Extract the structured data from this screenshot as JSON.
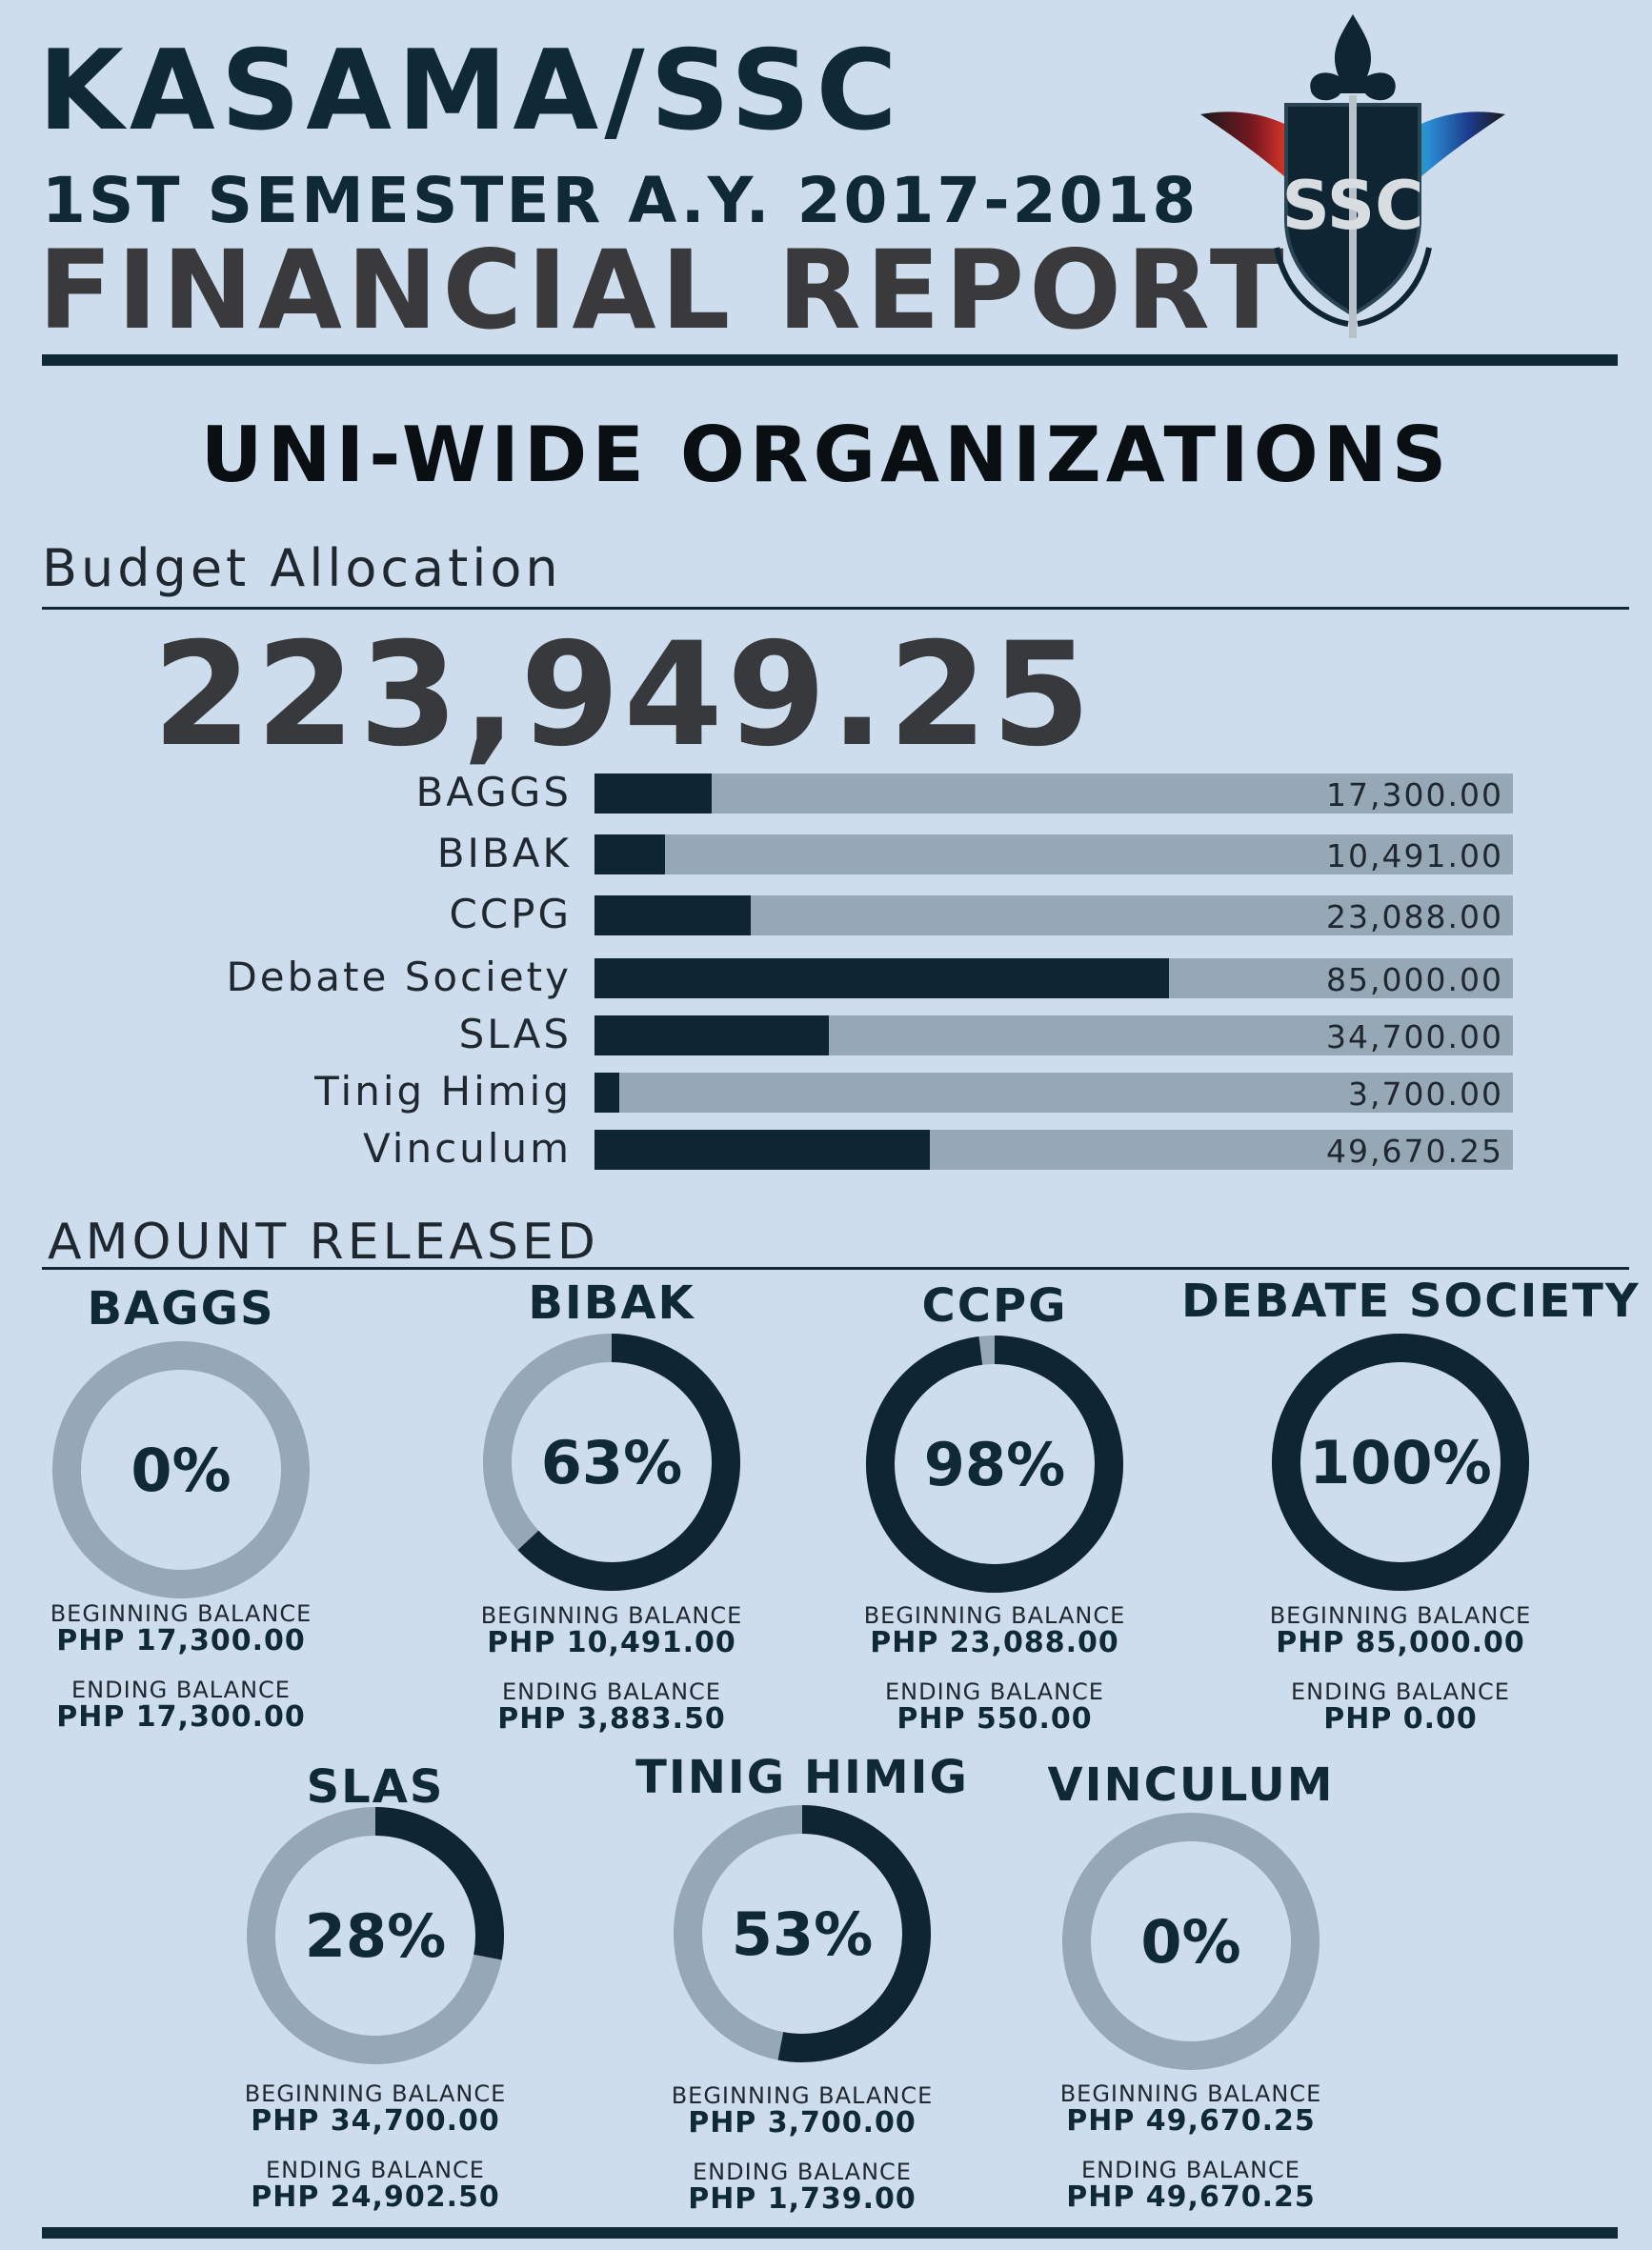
{
  "header": {
    "title": "KASAMA/SSC",
    "subtitle": "1ST SEMESTER A.Y. 2017-2018",
    "report": "FINANCIAL REPORT",
    "logo_text": "SSC"
  },
  "section_title": "UNI-WIDE ORGANIZATIONS",
  "budget": {
    "label": "Budget Allocation",
    "total": "223,949.25"
  },
  "released_label": "AMOUNT RELEASED",
  "colors": {
    "background": "#cddded",
    "dark": "#0f2533",
    "track": "#96a7b5"
  },
  "chart_data": [
    {
      "type": "bar",
      "orientation": "horizontal",
      "title": "Budget Allocation",
      "categories": [
        "BAGGS",
        "BIBAK",
        "CCPG",
        "Debate Society",
        "SLAS",
        "Tinig Himig",
        "Vinculum"
      ],
      "values": [
        17300.0,
        10491.0,
        23088.0,
        85000.0,
        34700.0,
        3700.0,
        49670.25
      ],
      "value_labels": [
        "17,300.00",
        "10,491.00",
        "23,088.00",
        "85,000.00",
        "34,700.00",
        "3,700.00",
        "49,670.25"
      ],
      "xlim": [
        0,
        136000
      ],
      "grid": false
    },
    {
      "type": "pie",
      "title": "AMOUNT RELEASED",
      "donuts": [
        {
          "name": "BAGGS",
          "percent": 0,
          "label": "0%",
          "beginning_label": "BEGINNING BALANCE",
          "beginning": "PHP 17,300.00",
          "ending_label": "ENDING BALANCE",
          "ending": "PHP 17,300.00"
        },
        {
          "name": "BIBAK",
          "percent": 63,
          "label": "63%",
          "beginning_label": "BEGINNING BALANCE",
          "beginning": "PHP 10,491.00",
          "ending_label": "ENDING BALANCE",
          "ending": "PHP 3,883.50"
        },
        {
          "name": "CCPG",
          "percent": 98,
          "label": "98%",
          "beginning_label": "BEGINNING BALANCE",
          "beginning": "PHP 23,088.00",
          "ending_label": "ENDING BALANCE",
          "ending": "PHP 550.00"
        },
        {
          "name": "DEBATE SOCIETY",
          "percent": 100,
          "label": "100%",
          "beginning_label": "BEGINNING BALANCE",
          "beginning": "PHP 85,000.00",
          "ending_label": "ENDING BALANCE",
          "ending": "PHP 0.00"
        },
        {
          "name": "SLAS",
          "percent": 28,
          "label": "28%",
          "beginning_label": "BEGINNING BALANCE",
          "beginning": "PHP 34,700.00",
          "ending_label": "ENDING BALANCE",
          "ending": "PHP 24,902.50"
        },
        {
          "name": "TINIG HIMIG",
          "percent": 53,
          "label": "53%",
          "beginning_label": "BEGINNING BALANCE",
          "beginning": "PHP 3,700.00",
          "ending_label": "ENDING BALANCE",
          "ending": "PHP 1,739.00"
        },
        {
          "name": "VINCULUM",
          "percent": 0,
          "label": "0%",
          "beginning_label": "BEGINNING BALANCE",
          "beginning": "PHP 49,670.25",
          "ending_label": "ENDING BALANCE",
          "ending": "PHP 49,670.25"
        }
      ]
    }
  ]
}
